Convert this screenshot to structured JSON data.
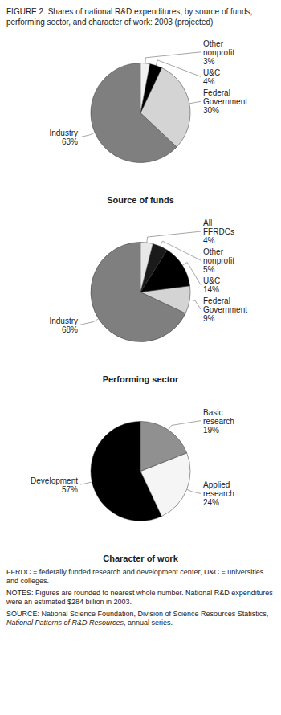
{
  "title": "FIGURE 2. Shares of national R&D expenditures, by source of funds,\nperforming sector, and character of work: 2003 (projected)",
  "chart_data": [
    {
      "type": "pie",
      "title": "Source of funds",
      "categories": [
        "Industry",
        "Federal\nGovernment",
        "U&C",
        "Other\nnonprofit"
      ],
      "values": [
        63,
        30,
        4,
        3
      ],
      "value_labels": [
        "63%",
        "30%",
        "4%",
        "3%"
      ],
      "colors": [
        "#7f7f7f",
        "#d4d4d4",
        "#000000",
        "#f2f2f2"
      ],
      "data_labels": true
    },
    {
      "type": "pie",
      "title": "Performing sector",
      "categories": [
        "Industry",
        "Federal\nGovernment",
        "U&C",
        "Other\nnonprofit",
        "All\nFFRDCs"
      ],
      "values": [
        68,
        9,
        14,
        5,
        4
      ],
      "value_labels": [
        "68%",
        "9%",
        "14%",
        "5%",
        "4%"
      ],
      "colors": [
        "#7f7f7f",
        "#d4d4d4",
        "#000000",
        "#1a1a1a",
        "#e8e8e8"
      ],
      "data_labels": true
    },
    {
      "type": "pie",
      "title": "Character of work",
      "categories": [
        "Development",
        "Applied\nresearch",
        "Basic\nresearch"
      ],
      "values": [
        57,
        24,
        19
      ],
      "value_labels": [
        "57%",
        "24%",
        "19%"
      ],
      "colors": [
        "#000000",
        "#f5f5f5",
        "#909090"
      ],
      "data_labels": true
    }
  ],
  "annotations": [
    "FFRDC = federally funded research and development center, U&C = universities and colleges.",
    "NOTES: Figures are rounded to nearest whole number. National R&D expenditures were an estimated $284 billion in 2003.",
    [
      "SOURCE: National Science Foundation, Division of Science Resources Statistics, ",
      "National Patterns of R&D Resources",
      ", annual series."
    ]
  ]
}
